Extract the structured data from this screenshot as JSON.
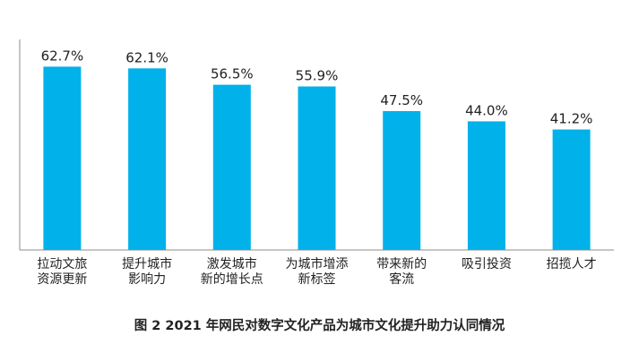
{
  "chart_data": {
    "type": "bar",
    "title": "",
    "xlabel": "",
    "ylabel": "",
    "categories": [
      [
        "拉动文旅",
        "资源更新"
      ],
      [
        "提升城市",
        "影响力"
      ],
      [
        "激发城市",
        "新的增长点"
      ],
      [
        "为城市增添",
        "新标签"
      ],
      [
        "带来新的",
        "客流"
      ],
      [
        "吸引投资"
      ],
      [
        "招揽人才"
      ]
    ],
    "values": [
      62.7,
      62.1,
      56.5,
      55.9,
      47.5,
      44.0,
      41.2
    ],
    "value_labels": [
      "62.7%",
      "62.1%",
      "56.5%",
      "55.9%",
      "47.5%",
      "44.0%",
      "41.2%"
    ],
    "ylim": [
      0,
      72
    ],
    "grid": false,
    "colors": {
      "bar": "#00b1ea",
      "axis": "#8c8c8c",
      "text": "#222222"
    }
  },
  "caption": "图 2  2021 年网民对数字文化产品为城市文化提升助力认同情况"
}
